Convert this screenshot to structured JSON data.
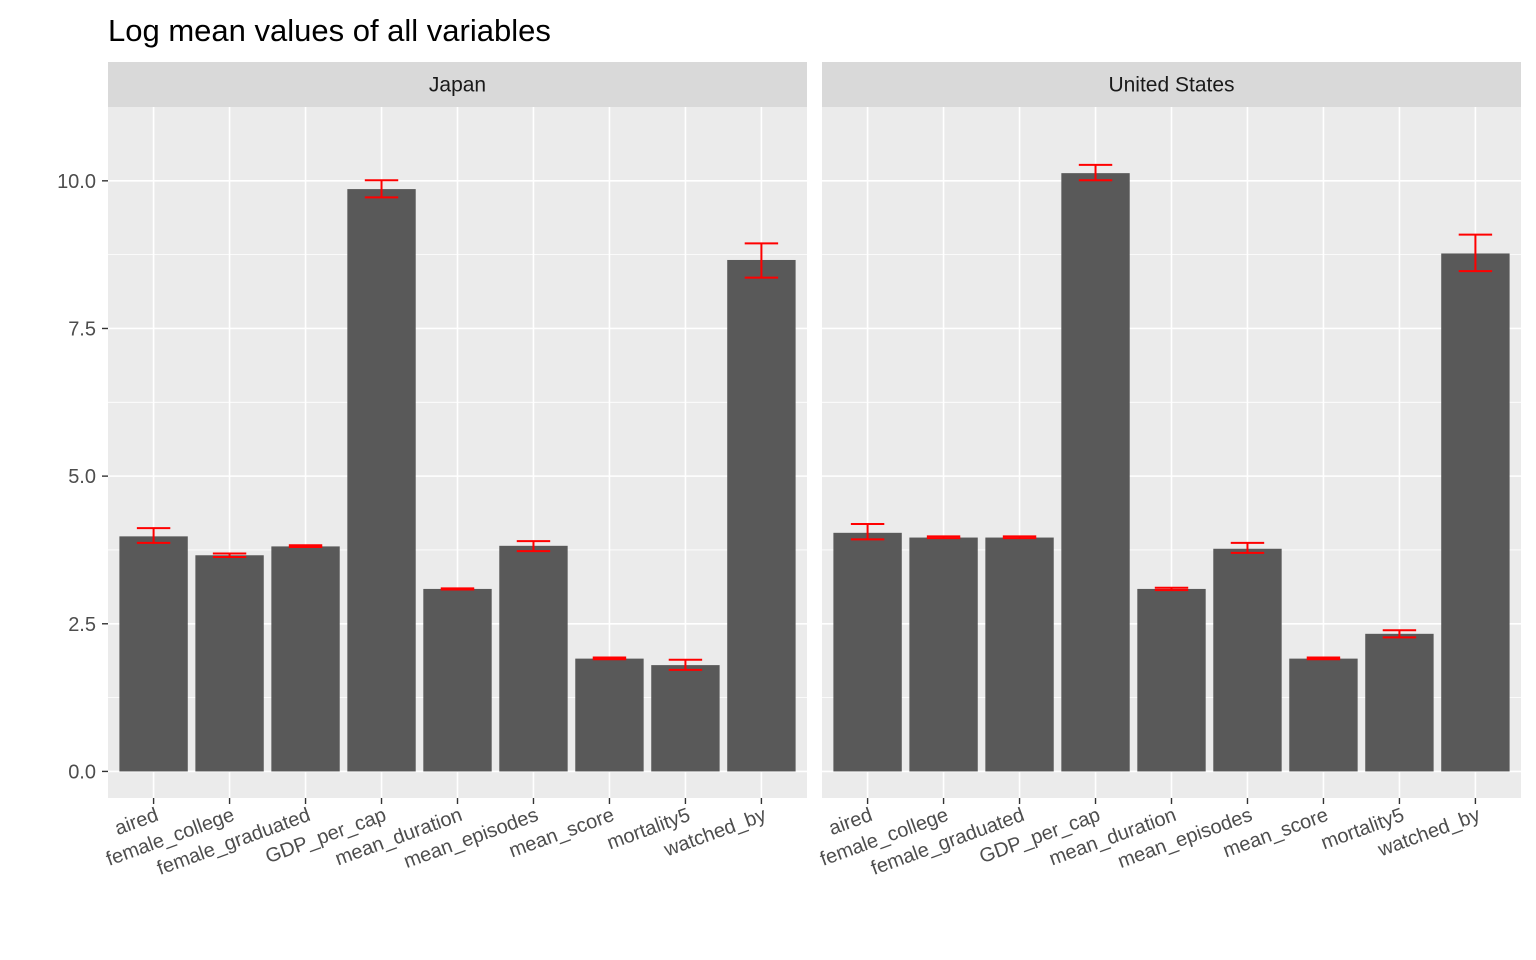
{
  "chart_data": {
    "type": "bar",
    "title": "Log mean values of all variables",
    "xlabel": "",
    "ylabel": "",
    "ylim": [
      -0.45,
      11.25
    ],
    "yticks": [
      0.0,
      2.5,
      5.0,
      7.5,
      10.0
    ],
    "ytick_labels": [
      "0.0",
      "2.5",
      "5.0",
      "7.5",
      "10.0"
    ],
    "categories": [
      "aired",
      "female_college",
      "female_graduated",
      "GDP_per_cap",
      "mean_duration",
      "mean_episodes",
      "mean_score",
      "mortality5",
      "watched_by"
    ],
    "grid": true,
    "bar_color": "#595959",
    "error_color": "#ff0000",
    "facets": [
      {
        "name": "Japan",
        "values": [
          3.98,
          3.66,
          3.81,
          9.86,
          3.09,
          3.82,
          1.91,
          1.8,
          8.66
        ],
        "error_low": [
          3.87,
          3.63,
          3.8,
          9.72,
          3.08,
          3.73,
          1.9,
          1.72,
          8.36
        ],
        "error_high": [
          4.12,
          3.69,
          3.83,
          10.01,
          3.1,
          3.9,
          1.93,
          1.89,
          8.94
        ]
      },
      {
        "name": "United States",
        "values": [
          4.04,
          3.96,
          3.96,
          10.13,
          3.09,
          3.77,
          1.91,
          2.33,
          8.77
        ],
        "error_low": [
          3.93,
          3.95,
          3.95,
          10.01,
          3.07,
          3.7,
          1.9,
          2.27,
          8.47
        ],
        "error_high": [
          4.19,
          3.98,
          3.98,
          10.27,
          3.11,
          3.87,
          1.93,
          2.39,
          9.09
        ]
      }
    ]
  }
}
